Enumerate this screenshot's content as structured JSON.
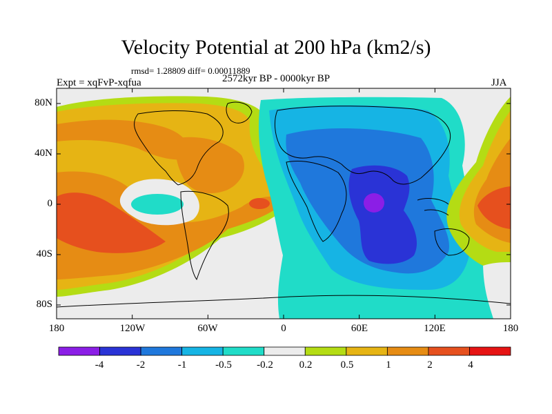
{
  "title": "Velocity Potential at 200 hPa (km2/s)",
  "stats": "rmsd= 1.28809 diff= 0.00011889",
  "experiment": "Expt = xqFvP-xqfua",
  "period": "2572kyr BP - 0000kyr BP",
  "season": "JJA",
  "lat_labels": [
    "80N",
    "40N",
    "0",
    "40S",
    "80S"
  ],
  "lon_labels": [
    "180",
    "120W",
    "60W",
    "0",
    "60E",
    "120E",
    "180"
  ],
  "colorbar": {
    "labels": [
      "-4",
      "-2",
      "-1",
      "-0.5",
      "-0.2",
      "0.2",
      "0.5",
      "1",
      "2",
      "4"
    ],
    "colors": [
      "#8b1ee6",
      "#2a33d6",
      "#1f78dc",
      "#16b4e4",
      "#20dcc8",
      "#ececec",
      "#b4dc14",
      "#e6b414",
      "#e68c14",
      "#e6501e",
      "#e61414"
    ]
  },
  "background_color": "#ececec"
}
